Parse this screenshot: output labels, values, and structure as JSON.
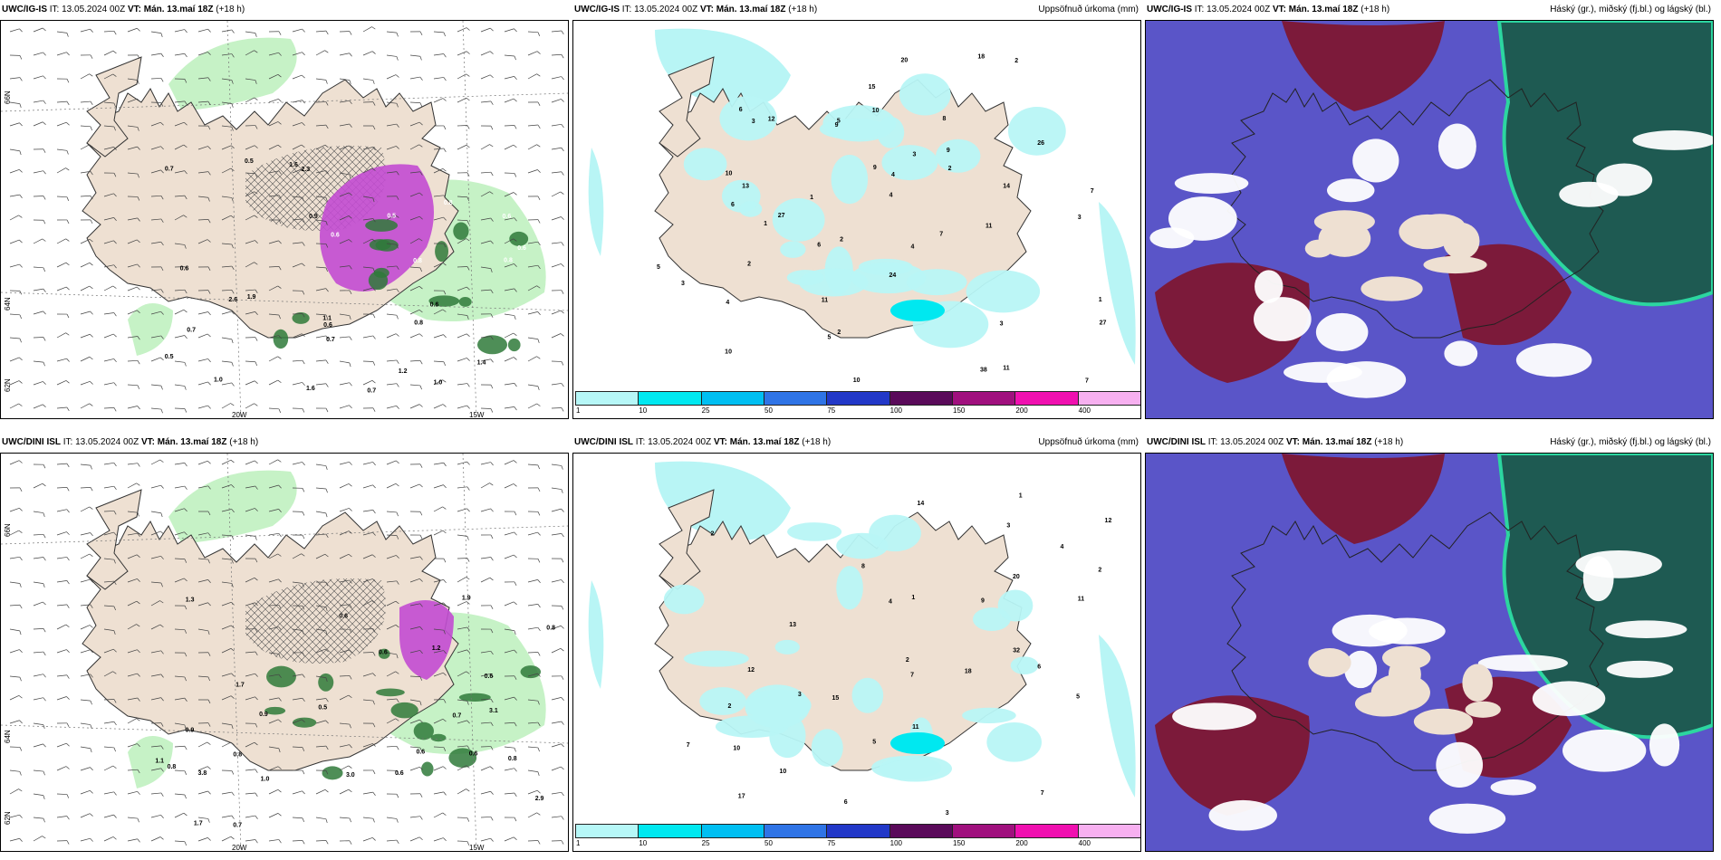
{
  "panels": [
    {
      "model": "UWC/IG-IS",
      "it_label": "IT:",
      "it_value": "13.05.2024 00Z",
      "vt_label": "VT:",
      "vt_value": "Mán. 13.maí 18Z",
      "lead": "(+18 h)",
      "right_title": "",
      "type": "wind-precip",
      "lon_labels": [
        "20W",
        "15W"
      ],
      "lat_labels": [
        "66N",
        "64N",
        "62N"
      ],
      "values": [
        "0.6",
        "0.5",
        "0.6",
        "0.8",
        "0.7",
        "1.0",
        "0.9",
        "0.6",
        "1.6",
        "0.7",
        "1.4",
        "1.0",
        "1.1",
        "1.2",
        "0.8",
        "0.6",
        "0.8",
        "0.5",
        "0.6",
        "2.6",
        "0.8",
        "0.7",
        "1.0",
        "1.9",
        "2.3",
        "1.6",
        "0.6",
        "0.7",
        "0.5"
      ]
    },
    {
      "model": "UWC/IG-IS",
      "it_label": "IT:",
      "it_value": "13.05.2024 00Z",
      "vt_label": "VT:",
      "vt_value": "Mán. 13.maí 18Z",
      "lead": "(+18 h)",
      "right_title": "Uppsöfnuð úrkoma (mm)",
      "type": "accum",
      "values": [
        "10",
        "13",
        "10",
        "1",
        "3",
        "4",
        "2",
        "5",
        "4",
        "3",
        "7",
        "6",
        "11",
        "9",
        "2",
        "4",
        "3",
        "5",
        "7",
        "2",
        "10",
        "9",
        "8",
        "6",
        "4",
        "3",
        "2",
        "1",
        "12",
        "24",
        "27",
        "20",
        "26",
        "18",
        "27",
        "38",
        "14",
        "11",
        "15",
        "9",
        "11",
        "10",
        "6",
        "5",
        "7",
        "3",
        "2",
        "1"
      ]
    },
    {
      "model": "UWC/IG-IS",
      "it_label": "IT:",
      "it_value": "13.05.2024 00Z",
      "vt_label": "VT:",
      "vt_value": "Mán. 13.maí 18Z",
      "lead": "(+18 h)",
      "right_title": "Háský (gr.), miðský (fj.bl.) og lágský (bl.)",
      "type": "cloud"
    },
    {
      "model": "UWC/DINI ISL",
      "it_label": "IT:",
      "it_value": "13.05.2024 00Z",
      "vt_label": "VT:",
      "vt_value": "Mán. 13.maí 18Z",
      "lead": "(+18 h)",
      "right_title": "",
      "type": "wind-precip",
      "lon_labels": [
        "20W",
        "15W"
      ],
      "lat_labels": [
        "66N",
        "64N",
        "62N"
      ],
      "values": [
        "0.7",
        "0.6",
        "0.9",
        "1.0",
        "0.8",
        "1.2",
        "0.9",
        "0.8",
        "0.7",
        "1.1",
        "1.7",
        "0.6",
        "0.5",
        "0.8",
        "1.3",
        "0.6",
        "3.1",
        "1.7",
        "0.6",
        "1.9",
        "3.8",
        "0.6",
        "0.8",
        "3.0",
        "2.9",
        "0.6"
      ]
    },
    {
      "model": "UWC/DINI ISL",
      "it_label": "IT:",
      "it_value": "13.05.2024 00Z",
      "vt_label": "VT:",
      "vt_value": "Mán. 13.maí 18Z",
      "lead": "(+18 h)",
      "right_title": "Uppsöfnuð úrkoma (mm)",
      "type": "accum",
      "values": [
        "10",
        "14",
        "12",
        "1",
        "2",
        "3",
        "4",
        "5",
        "7",
        "8",
        "6",
        "11",
        "9",
        "2",
        "4",
        "3",
        "5",
        "7",
        "2",
        "10",
        "32",
        "20",
        "17",
        "15",
        "18",
        "13",
        "12",
        "11",
        "6",
        "7",
        "3",
        "2",
        "1"
      ]
    },
    {
      "model": "UWC/DINI ISL",
      "it_label": "IT:",
      "it_value": "13.05.2024 00Z",
      "vt_label": "VT:",
      "vt_value": "Mán. 13.maí 18Z",
      "lead": "(+18 h)",
      "right_title": "Háský (gr.), miðský (fj.bl.) og lágský (bl.)",
      "type": "cloud"
    }
  ],
  "colorbar": {
    "ticks": [
      "1",
      "10",
      "25",
      "50",
      "75",
      "100",
      "150",
      "200",
      "400"
    ],
    "colors": [
      "#b6f7f7",
      "#00e8f0",
      "#00bff2",
      "#2f74e6",
      "#2238c8",
      "#5a0a5a",
      "#a0107e",
      "#f010b0",
      "#f7b0f0"
    ]
  },
  "colors": {
    "land": "#eee0d2",
    "precip_light": "#c6f2c6",
    "precip_green": "#2f7a3a",
    "precip_purple": "#c24bd1",
    "accum_cyan": "#b8f5f5",
    "cloud_blue": "#5a55c8",
    "cloud_red": "#7c1a3a",
    "cloud_teal": "#1e5a52"
  }
}
